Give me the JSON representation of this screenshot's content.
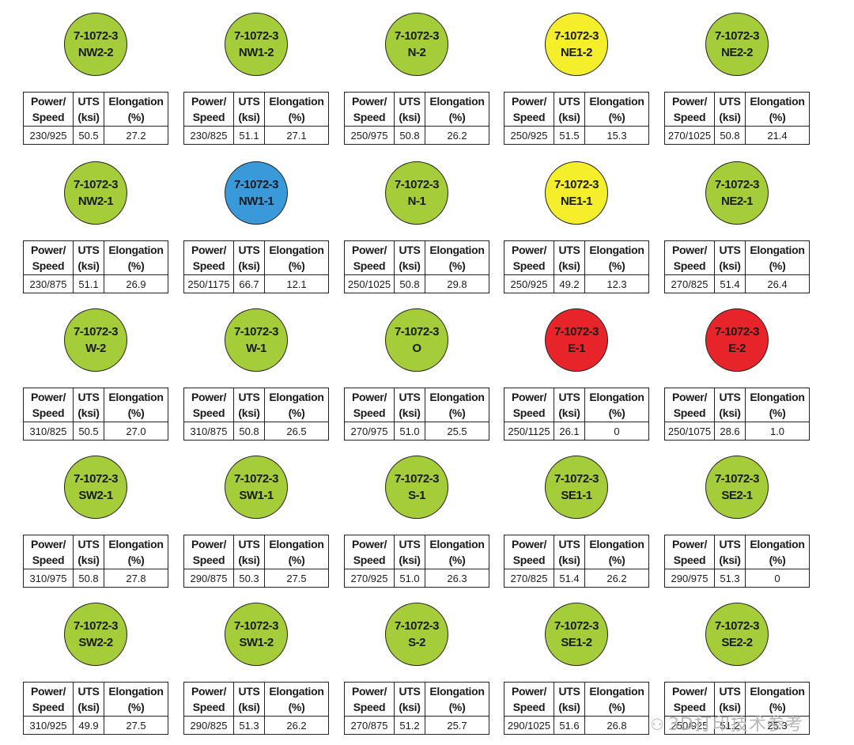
{
  "headers": {
    "power_l1": "Power/",
    "power_l2": "Speed",
    "uts_l1": "UTS",
    "uts_l2": "(ksi)",
    "elong_l1": "Elongation",
    "elong_l2": "(%)"
  },
  "colors": {
    "green": "#a5cd39",
    "yellow": "#f5ee2a",
    "blue": "#3a9ad9",
    "red": "#e8242b"
  },
  "samples": [
    {
      "line1": "7-1072-3",
      "line2": "NW2-2",
      "color": "green",
      "power_speed": "230/925",
      "uts": "50.5",
      "elongation": "27.2"
    },
    {
      "line1": "7-1072-3",
      "line2": "NW1-2",
      "color": "green",
      "power_speed": "230/825",
      "uts": "51.1",
      "elongation": "27.1"
    },
    {
      "line1": "7-1072-3",
      "line2": "N-2",
      "color": "green",
      "power_speed": "250/975",
      "uts": "50.8",
      "elongation": "26.2"
    },
    {
      "line1": "7-1072-3",
      "line2": "NE1-2",
      "color": "yellow",
      "power_speed": "250/925",
      "uts": "51.5",
      "elongation": "15.3"
    },
    {
      "line1": "7-1072-3",
      "line2": "NE2-2",
      "color": "green",
      "power_speed": "270/1025",
      "uts": "50.8",
      "elongation": "21.4"
    },
    {
      "line1": "7-1072-3",
      "line2": "NW2-1",
      "color": "green",
      "power_speed": "230/875",
      "uts": "51.1",
      "elongation": "26.9"
    },
    {
      "line1": "7-1072-3",
      "line2": "NW1-1",
      "color": "blue",
      "power_speed": "250/1175",
      "uts": "66.7",
      "elongation": "12.1"
    },
    {
      "line1": "7-1072-3",
      "line2": "N-1",
      "color": "green",
      "power_speed": "250/1025",
      "uts": "50.8",
      "elongation": "29.8"
    },
    {
      "line1": "7-1072-3",
      "line2": "NE1-1",
      "color": "yellow",
      "power_speed": "250/925",
      "uts": "49.2",
      "elongation": "12.3"
    },
    {
      "line1": "7-1072-3",
      "line2": "NE2-1",
      "color": "green",
      "power_speed": "270/825",
      "uts": "51.4",
      "elongation": "26.4"
    },
    {
      "line1": "7-1072-3",
      "line2": "W-2",
      "color": "green",
      "power_speed": "310/825",
      "uts": "50.5",
      "elongation": "27.0"
    },
    {
      "line1": "7-1072-3",
      "line2": "W-1",
      "color": "green",
      "power_speed": "310/875",
      "uts": "50.8",
      "elongation": "26.5"
    },
    {
      "line1": "7-1072-3",
      "line2": "O",
      "color": "green",
      "power_speed": "270/975",
      "uts": "51.0",
      "elongation": "25.5"
    },
    {
      "line1": "7-1072-3",
      "line2": "E-1",
      "color": "red",
      "power_speed": "250/1125",
      "uts": "26.1",
      "elongation": "0"
    },
    {
      "line1": "7-1072-3",
      "line2": "E-2",
      "color": "red",
      "power_speed": "250/1075",
      "uts": "28.6",
      "elongation": "1.0"
    },
    {
      "line1": "7-1072-3",
      "line2": "SW2-1",
      "color": "green",
      "power_speed": "310/975",
      "uts": "50.8",
      "elongation": "27.8"
    },
    {
      "line1": "7-1072-3",
      "line2": "SW1-1",
      "color": "green",
      "power_speed": "290/875",
      "uts": "50.3",
      "elongation": "27.5"
    },
    {
      "line1": "7-1072-3",
      "line2": "S-1",
      "color": "green",
      "power_speed": "270/925",
      "uts": "51.0",
      "elongation": "26.3"
    },
    {
      "line1": "7-1072-3",
      "line2": "SE1-1",
      "color": "green",
      "power_speed": "270/825",
      "uts": "51.4",
      "elongation": "26.2"
    },
    {
      "line1": "7-1072-3",
      "line2": "SE2-1",
      "color": "green",
      "power_speed": "290/975",
      "uts": "51.3",
      "elongation": "0"
    },
    {
      "line1": "7-1072-3",
      "line2": "SW2-2",
      "color": "green",
      "power_speed": "310/925",
      "uts": "49.9",
      "elongation": "27.5"
    },
    {
      "line1": "7-1072-3",
      "line2": "SW1-2",
      "color": "green",
      "power_speed": "290/825",
      "uts": "51.3",
      "elongation": "26.2"
    },
    {
      "line1": "7-1072-3",
      "line2": "S-2",
      "color": "green",
      "power_speed": "270/875",
      "uts": "51.2",
      "elongation": "25.7"
    },
    {
      "line1": "7-1072-3",
      "line2": "SE1-2",
      "color": "green",
      "power_speed": "290/1025",
      "uts": "51.6",
      "elongation": "26.8"
    },
    {
      "line1": "7-1072-3",
      "line2": "SE2-2",
      "color": "green",
      "power_speed": "250/925",
      "uts": "51.2",
      "elongation": "25.3"
    }
  ],
  "watermark": {
    "icon": "wechat-icon",
    "text": "3D打印技术参考"
  }
}
